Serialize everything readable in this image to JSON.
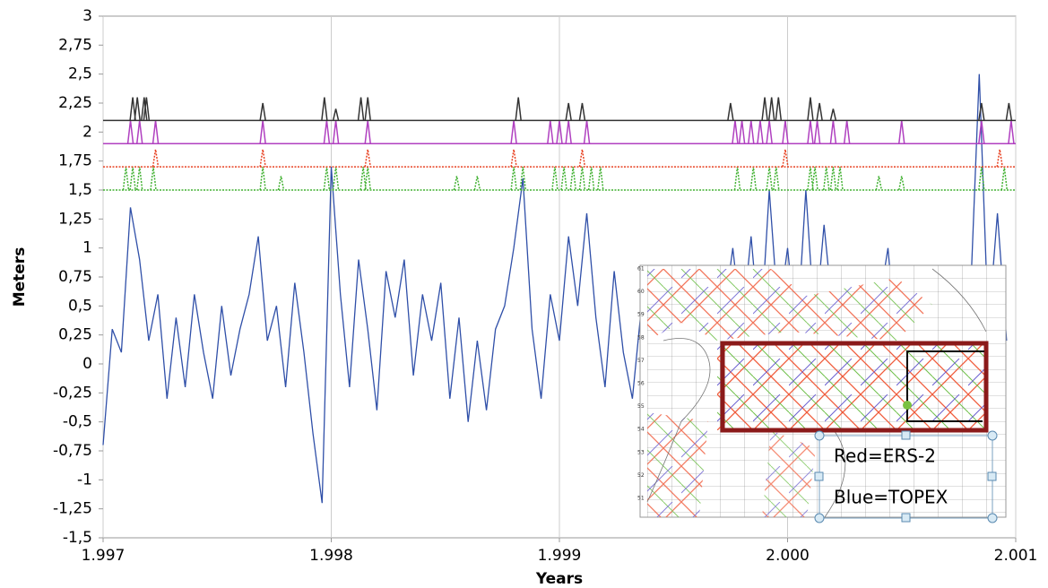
{
  "chart_data": {
    "type": "line",
    "xlabel": "Years",
    "ylabel": "Meters",
    "xlim": [
      1997,
      2001
    ],
    "ylim": [
      -1.5,
      3
    ],
    "xticks": [
      {
        "value": 1997,
        "label": "1.997"
      },
      {
        "value": 1998,
        "label": "1.998"
      },
      {
        "value": 1999,
        "label": "1.999"
      },
      {
        "value": 2000,
        "label": "2.000"
      },
      {
        "value": 2001,
        "label": "2.001"
      }
    ],
    "yticks": [
      {
        "value": -1.5,
        "label": "-1,5"
      },
      {
        "value": -1.25,
        "label": "-1,25"
      },
      {
        "value": -1,
        "label": "-1"
      },
      {
        "value": -0.75,
        "label": "-0,75"
      },
      {
        "value": -0.5,
        "label": "-0,5"
      },
      {
        "value": -0.25,
        "label": "-0,25"
      },
      0,
      {
        "value": 0.25,
        "label": "0,25"
      },
      {
        "value": 0.5,
        "label": "0,5"
      },
      {
        "value": 0.75,
        "label": "0,75"
      },
      1,
      {
        "value": 1.25,
        "label": "1,25"
      },
      {
        "value": 1.5,
        "label": "1,5"
      },
      {
        "value": 1.75,
        "label": "1,75"
      },
      2,
      {
        "value": 2.25,
        "label": "2,25"
      },
      {
        "value": 2.5,
        "label": "2,5"
      },
      {
        "value": 2.75,
        "label": "2,75"
      },
      3
    ],
    "grid": "x",
    "series": [
      {
        "color": "#2f4fa8",
        "x": [
          1997.0,
          1997.04,
          1997.08,
          1997.12,
          1997.16,
          1997.2,
          1997.24,
          1997.28,
          1997.32,
          1997.36,
          1997.4,
          1997.44,
          1997.48,
          1997.52,
          1997.56,
          1997.6,
          1997.64,
          1997.68,
          1997.72,
          1997.76,
          1997.8,
          1997.84,
          1997.88,
          1997.92,
          1997.96,
          1998.0,
          1998.04,
          1998.08,
          1998.12,
          1998.16,
          1998.2,
          1998.24,
          1998.28,
          1998.32,
          1998.36,
          1998.4,
          1998.44,
          1998.48,
          1998.52,
          1998.56,
          1998.6,
          1998.64,
          1998.68,
          1998.72,
          1998.76,
          1998.8,
          1998.84,
          1998.88,
          1998.92,
          1998.96,
          1999.0,
          1999.04,
          1999.08,
          1999.12,
          1999.16,
          1999.2,
          1999.24,
          1999.28,
          1999.32,
          1999.36,
          1999.4,
          1999.44,
          1999.48,
          1999.52,
          1999.56,
          1999.6,
          1999.64,
          1999.68,
          1999.72,
          1999.76,
          1999.8,
          1999.84,
          1999.88,
          1999.92,
          1999.96,
          2000.0,
          2000.04,
          2000.08,
          2000.12,
          2000.16,
          2000.2,
          2000.24,
          2000.28,
          2000.32,
          2000.36,
          2000.4,
          2000.44,
          2000.48,
          2000.52,
          2000.56,
          2000.6,
          2000.64,
          2000.68,
          2000.72,
          2000.76,
          2000.8,
          2000.84,
          2000.88,
          2000.92,
          2000.96
        ],
        "values": [
          -0.7,
          0.3,
          0.1,
          1.35,
          0.9,
          0.2,
          0.6,
          -0.3,
          0.4,
          -0.2,
          0.6,
          0.1,
          -0.3,
          0.5,
          -0.1,
          0.3,
          0.6,
          1.1,
          0.2,
          0.5,
          -0.2,
          0.7,
          0.1,
          -0.6,
          -1.2,
          1.7,
          0.6,
          -0.2,
          0.9,
          0.3,
          -0.4,
          0.8,
          0.4,
          0.9,
          -0.1,
          0.6,
          0.2,
          0.7,
          -0.3,
          0.4,
          -0.5,
          0.2,
          -0.4,
          0.3,
          0.5,
          1.0,
          1.6,
          0.3,
          -0.3,
          0.6,
          0.2,
          1.1,
          0.5,
          1.3,
          0.4,
          -0.2,
          0.8,
          0.1,
          -0.3,
          0.5,
          0.0,
          0.3,
          -0.2,
          0.4,
          0.1,
          0.3,
          -0.1,
          0.2,
          0.4,
          1.0,
          0.3,
          1.1,
          0.2,
          1.5,
          0.4,
          1.0,
          0.2,
          1.5,
          0.3,
          1.2,
          0.4,
          0.1,
          0.3,
          0.0,
          0.2,
          0.5,
          1.0,
          0.1,
          0.3,
          0.2,
          0.4,
          0.1,
          0.3,
          0.0,
          0.2,
          0.5,
          2.5,
          0.3,
          1.3,
          0.2
        ]
      },
      {
        "color": "#40b030",
        "style": "dotted",
        "baseline": 1.5,
        "x": [
          1997.1,
          1997.13,
          1997.16,
          1997.22,
          1997.7,
          1997.78,
          1997.98,
          1998.02,
          1998.14,
          1998.16,
          1998.55,
          1998.64,
          1998.8,
          1998.84,
          1998.98,
          1999.02,
          1999.06,
          1999.1,
          1999.14,
          1999.18,
          1999.78,
          1999.85,
          1999.92,
          1999.95,
          2000.1,
          2000.12,
          2000.17,
          2000.2,
          2000.23,
          2000.4,
          2000.5,
          2000.85,
          2000.95
        ],
        "values": [
          1.7,
          1.7,
          1.7,
          1.7,
          1.7,
          1.62,
          1.7,
          1.7,
          1.7,
          1.7,
          1.62,
          1.62,
          1.7,
          1.7,
          1.7,
          1.7,
          1.7,
          1.7,
          1.7,
          1.7,
          1.7,
          1.7,
          1.7,
          1.7,
          1.7,
          1.7,
          1.7,
          1.7,
          1.7,
          1.62,
          1.62,
          1.7,
          1.7
        ]
      },
      {
        "color": "#e84020",
        "style": "dotted",
        "baseline": 1.7,
        "x": [
          1997.23,
          1997.7,
          1998.16,
          1998.8,
          1999.1,
          1999.99,
          2000.93
        ],
        "values": [
          1.85,
          1.85,
          1.85,
          1.85,
          1.85,
          1.85,
          1.85
        ]
      },
      {
        "color": "#b040c0",
        "baseline": 1.9,
        "x": [
          1997.12,
          1997.16,
          1997.23,
          1997.7,
          1997.98,
          1998.02,
          1998.16,
          1998.8,
          1998.96,
          1999.0,
          1999.04,
          1999.12,
          1999.77,
          1999.8,
          1999.84,
          1999.88,
          1999.92,
          1999.99,
          2000.1,
          2000.13,
          2000.2,
          2000.26,
          2000.5,
          2000.85,
          2000.98
        ],
        "values": [
          2.1,
          2.1,
          2.1,
          2.1,
          2.1,
          2.1,
          2.1,
          2.1,
          2.1,
          2.1,
          2.1,
          2.1,
          2.1,
          2.1,
          2.1,
          2.1,
          2.1,
          2.1,
          2.1,
          2.1,
          2.1,
          2.1,
          2.1,
          2.1,
          2.1
        ]
      },
      {
        "color": "#333333",
        "baseline": 2.1,
        "x": [
          1997.13,
          1997.15,
          1997.18,
          1997.19,
          1997.7,
          1997.97,
          1998.02,
          1998.13,
          1998.16,
          1998.82,
          1999.04,
          1999.1,
          1999.75,
          1999.9,
          1999.93,
          1999.96,
          2000.1,
          2000.14,
          2000.2,
          2000.85,
          2000.97
        ],
        "values": [
          2.3,
          2.3,
          2.3,
          2.3,
          2.25,
          2.3,
          2.2,
          2.3,
          2.3,
          2.3,
          2.25,
          2.25,
          2.25,
          2.3,
          2.3,
          2.3,
          2.3,
          2.25,
          2.2,
          2.25,
          2.25
        ]
      }
    ],
    "annotations": [
      "Red=ERS-2",
      "Blue=TOPEX"
    ],
    "inset_lat_labels": [
      61,
      60,
      59,
      58,
      57,
      56,
      55,
      54,
      53,
      52,
      51
    ]
  }
}
